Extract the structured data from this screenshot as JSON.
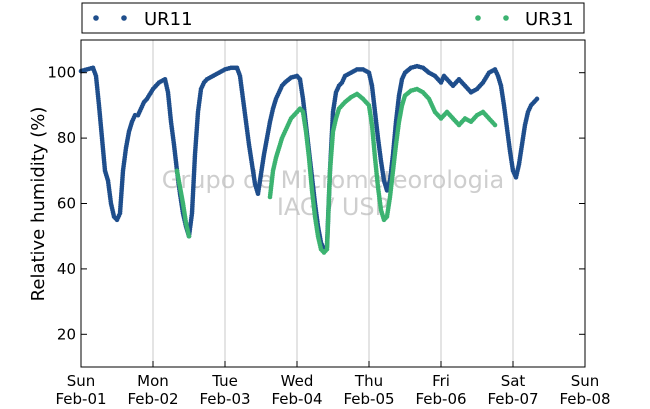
{
  "chart_data": {
    "type": "scatter",
    "xlabel": "",
    "ylabel": "Relative humidity (%)",
    "xlim": [
      "2024-02-01T00:00",
      "2024-02-08T00:00"
    ],
    "ylim": [
      10,
      110
    ],
    "yticks": [
      20,
      40,
      60,
      80,
      100
    ],
    "xticks": [
      {
        "day": "Sun",
        "date": "Feb-01"
      },
      {
        "day": "Mon",
        "date": "Feb-02"
      },
      {
        "day": "Tue",
        "date": "Feb-03"
      },
      {
        "day": "Wed",
        "date": "Feb-04"
      },
      {
        "day": "Thu",
        "date": "Feb-05"
      },
      {
        "day": "Fri",
        "date": "Feb-06"
      },
      {
        "day": "Sat",
        "date": "Feb-07"
      },
      {
        "day": "Sun",
        "date": "Feb-08"
      }
    ],
    "grid": "x",
    "legend_position": "top",
    "watermark": [
      "Grupo de Micrometeorologia",
      "IAG / USP"
    ],
    "series": [
      {
        "name": "UR11",
        "color": "#1f4e8c",
        "points": [
          [
            "2024-02-01T00:00",
            100.5
          ],
          [
            "2024-02-01T02:00",
            101
          ],
          [
            "2024-02-01T04:00",
            101.5
          ],
          [
            "2024-02-01T05:00",
            99
          ],
          [
            "2024-02-01T06:00",
            90
          ],
          [
            "2024-02-01T07:00",
            80
          ],
          [
            "2024-02-01T08:00",
            70
          ],
          [
            "2024-02-01T09:00",
            67
          ],
          [
            "2024-02-01T10:00",
            60
          ],
          [
            "2024-02-01T11:00",
            56
          ],
          [
            "2024-02-01T12:00",
            55
          ],
          [
            "2024-02-01T13:00",
            57
          ],
          [
            "2024-02-01T14:00",
            70
          ],
          [
            "2024-02-01T15:00",
            77
          ],
          [
            "2024-02-01T16:00",
            82
          ],
          [
            "2024-02-01T17:00",
            85
          ],
          [
            "2024-02-01T18:00",
            87
          ],
          [
            "2024-02-01T19:00",
            87
          ],
          [
            "2024-02-01T20:00",
            89
          ],
          [
            "2024-02-01T21:00",
            91
          ],
          [
            "2024-02-01T22:00",
            92
          ],
          [
            "2024-02-02T00:00",
            95
          ],
          [
            "2024-02-02T02:00",
            97
          ],
          [
            "2024-02-02T04:00",
            98
          ],
          [
            "2024-02-02T05:00",
            94
          ],
          [
            "2024-02-02T06:00",
            85
          ],
          [
            "2024-02-02T07:00",
            78
          ],
          [
            "2024-02-02T08:00",
            70
          ],
          [
            "2024-02-02T09:00",
            63
          ],
          [
            "2024-02-02T10:00",
            57
          ],
          [
            "2024-02-02T11:00",
            53
          ],
          [
            "2024-02-02T12:00",
            50
          ],
          [
            "2024-02-02T13:00",
            57
          ],
          [
            "2024-02-02T14:00",
            75
          ],
          [
            "2024-02-02T15:00",
            88
          ],
          [
            "2024-02-02T16:00",
            95
          ],
          [
            "2024-02-02T17:00",
            97
          ],
          [
            "2024-02-02T18:00",
            98
          ],
          [
            "2024-02-02T20:00",
            99
          ],
          [
            "2024-02-02T22:00",
            100
          ],
          [
            "2024-02-03T00:00",
            101
          ],
          [
            "2024-02-03T02:00",
            101.5
          ],
          [
            "2024-02-03T04:00",
            101.5
          ],
          [
            "2024-02-03T05:00",
            99
          ],
          [
            "2024-02-03T06:00",
            92
          ],
          [
            "2024-02-03T07:00",
            85
          ],
          [
            "2024-02-03T08:00",
            78
          ],
          [
            "2024-02-03T09:00",
            72
          ],
          [
            "2024-02-03T10:00",
            66
          ],
          [
            "2024-02-03T11:00",
            63
          ],
          [
            "2024-02-03T12:00",
            69
          ],
          [
            "2024-02-03T13:00",
            75
          ],
          [
            "2024-02-03T14:00",
            80
          ],
          [
            "2024-02-03T15:00",
            85
          ],
          [
            "2024-02-03T16:00",
            89
          ],
          [
            "2024-02-03T17:00",
            92
          ],
          [
            "2024-02-03T18:00",
            94
          ],
          [
            "2024-02-03T19:00",
            96
          ],
          [
            "2024-02-03T20:00",
            97
          ],
          [
            "2024-02-03T22:00",
            98.5
          ],
          [
            "2024-02-04T00:00",
            99
          ],
          [
            "2024-02-04T01:00",
            98
          ],
          [
            "2024-02-04T02:00",
            92
          ],
          [
            "2024-02-04T03:00",
            84
          ],
          [
            "2024-02-04T04:00",
            76
          ],
          [
            "2024-02-04T05:00",
            68
          ],
          [
            "2024-02-04T06:00",
            60
          ],
          [
            "2024-02-04T07:00",
            53
          ],
          [
            "2024-02-04T08:00",
            48
          ],
          [
            "2024-02-04T09:00",
            46
          ],
          [
            "2024-02-04T10:00",
            47
          ],
          [
            "2024-02-04T11:00",
            70
          ],
          [
            "2024-02-04T12:00",
            88
          ],
          [
            "2024-02-04T13:00",
            94
          ],
          [
            "2024-02-04T14:00",
            96
          ],
          [
            "2024-02-04T15:00",
            97
          ],
          [
            "2024-02-04T16:00",
            99
          ],
          [
            "2024-02-04T18:00",
            100
          ],
          [
            "2024-02-04T20:00",
            101
          ],
          [
            "2024-02-04T22:00",
            101
          ],
          [
            "2024-02-05T00:00",
            100
          ],
          [
            "2024-02-05T01:00",
            96
          ],
          [
            "2024-02-05T02:00",
            88
          ],
          [
            "2024-02-05T03:00",
            80
          ],
          [
            "2024-02-05T04:00",
            73
          ],
          [
            "2024-02-05T05:00",
            67
          ],
          [
            "2024-02-05T06:00",
            64
          ],
          [
            "2024-02-05T07:00",
            67
          ],
          [
            "2024-02-05T08:00",
            75
          ],
          [
            "2024-02-05T09:00",
            85
          ],
          [
            "2024-02-05T10:00",
            93
          ],
          [
            "2024-02-05T11:00",
            98
          ],
          [
            "2024-02-05T12:00",
            100
          ],
          [
            "2024-02-05T14:00",
            101.5
          ],
          [
            "2024-02-05T16:00",
            102
          ],
          [
            "2024-02-05T18:00",
            101.5
          ],
          [
            "2024-02-05T20:00",
            100
          ],
          [
            "2024-02-05T22:00",
            99
          ],
          [
            "2024-02-06T00:00",
            97
          ],
          [
            "2024-02-06T01:00",
            99
          ],
          [
            "2024-02-06T02:00",
            98
          ],
          [
            "2024-02-06T04:00",
            96
          ],
          [
            "2024-02-06T06:00",
            98
          ],
          [
            "2024-02-06T08:00",
            96
          ],
          [
            "2024-02-06T10:00",
            94
          ],
          [
            "2024-02-06T12:00",
            95
          ],
          [
            "2024-02-06T14:00",
            97
          ],
          [
            "2024-02-06T16:00",
            100
          ],
          [
            "2024-02-06T18:00",
            101
          ],
          [
            "2024-02-06T19:00",
            99
          ],
          [
            "2024-02-06T20:00",
            96
          ],
          [
            "2024-02-06T21:00",
            90
          ],
          [
            "2024-02-06T22:00",
            83
          ],
          [
            "2024-02-06T23:00",
            76
          ],
          [
            "2024-02-07T00:00",
            70
          ],
          [
            "2024-02-07T01:00",
            68
          ],
          [
            "2024-02-07T02:00",
            72
          ],
          [
            "2024-02-07T03:00",
            78
          ],
          [
            "2024-02-07T04:00",
            84
          ],
          [
            "2024-02-07T05:00",
            88
          ],
          [
            "2024-02-07T06:00",
            90
          ],
          [
            "2024-02-07T07:00",
            91
          ],
          [
            "2024-02-07T08:00",
            92
          ]
        ]
      },
      {
        "name": "UR31",
        "color": "#3cb371",
        "points": [
          [
            "2024-02-02T08:00",
            70
          ],
          [
            "2024-02-02T09:00",
            65
          ],
          [
            "2024-02-02T10:00",
            60
          ],
          [
            "2024-02-02T11:00",
            54
          ],
          [
            "2024-02-02T12:00",
            50
          ],
          [
            "2024-02-03T15:00",
            62
          ],
          [
            "2024-02-03T16:00",
            70
          ],
          [
            "2024-02-03T17:00",
            74
          ],
          [
            "2024-02-03T18:00",
            77
          ],
          [
            "2024-02-03T19:00",
            80
          ],
          [
            "2024-02-03T20:00",
            82
          ],
          [
            "2024-02-03T21:00",
            84
          ],
          [
            "2024-02-03T22:00",
            86
          ],
          [
            "2024-02-04T00:00",
            88
          ],
          [
            "2024-02-04T01:00",
            89
          ],
          [
            "2024-02-04T02:00",
            88
          ],
          [
            "2024-02-04T03:00",
            82
          ],
          [
            "2024-02-04T04:00",
            74
          ],
          [
            "2024-02-04T05:00",
            64
          ],
          [
            "2024-02-04T06:00",
            56
          ],
          [
            "2024-02-04T07:00",
            50
          ],
          [
            "2024-02-04T08:00",
            46
          ],
          [
            "2024-02-04T09:00",
            45
          ],
          [
            "2024-02-04T10:00",
            46
          ],
          [
            "2024-02-04T11:00",
            70
          ],
          [
            "2024-02-04T12:00",
            82
          ],
          [
            "2024-02-04T13:00",
            86
          ],
          [
            "2024-02-04T14:00",
            89
          ],
          [
            "2024-02-04T16:00",
            91
          ],
          [
            "2024-02-04T18:00",
            92.5
          ],
          [
            "2024-02-04T20:00",
            93.5
          ],
          [
            "2024-02-04T22:00",
            92
          ],
          [
            "2024-02-05T00:00",
            90
          ],
          [
            "2024-02-05T01:00",
            84
          ],
          [
            "2024-02-05T02:00",
            74
          ],
          [
            "2024-02-05T03:00",
            65
          ],
          [
            "2024-02-05T04:00",
            58
          ],
          [
            "2024-02-05T05:00",
            55
          ],
          [
            "2024-02-05T06:00",
            56
          ],
          [
            "2024-02-05T07:00",
            62
          ],
          [
            "2024-02-05T08:00",
            70
          ],
          [
            "2024-02-05T09:00",
            78
          ],
          [
            "2024-02-05T10:00",
            85
          ],
          [
            "2024-02-05T11:00",
            90
          ],
          [
            "2024-02-05T12:00",
            93
          ],
          [
            "2024-02-05T14:00",
            94.5
          ],
          [
            "2024-02-05T16:00",
            95
          ],
          [
            "2024-02-05T18:00",
            94
          ],
          [
            "2024-02-05T20:00",
            92
          ],
          [
            "2024-02-05T22:00",
            88
          ],
          [
            "2024-02-06T00:00",
            86
          ],
          [
            "2024-02-06T02:00",
            88
          ],
          [
            "2024-02-06T04:00",
            86
          ],
          [
            "2024-02-06T06:00",
            84
          ],
          [
            "2024-02-06T08:00",
            86
          ],
          [
            "2024-02-06T10:00",
            85
          ],
          [
            "2024-02-06T12:00",
            87
          ],
          [
            "2024-02-06T14:00",
            88
          ],
          [
            "2024-02-06T16:00",
            86
          ],
          [
            "2024-02-06T18:00",
            84
          ]
        ]
      }
    ]
  }
}
